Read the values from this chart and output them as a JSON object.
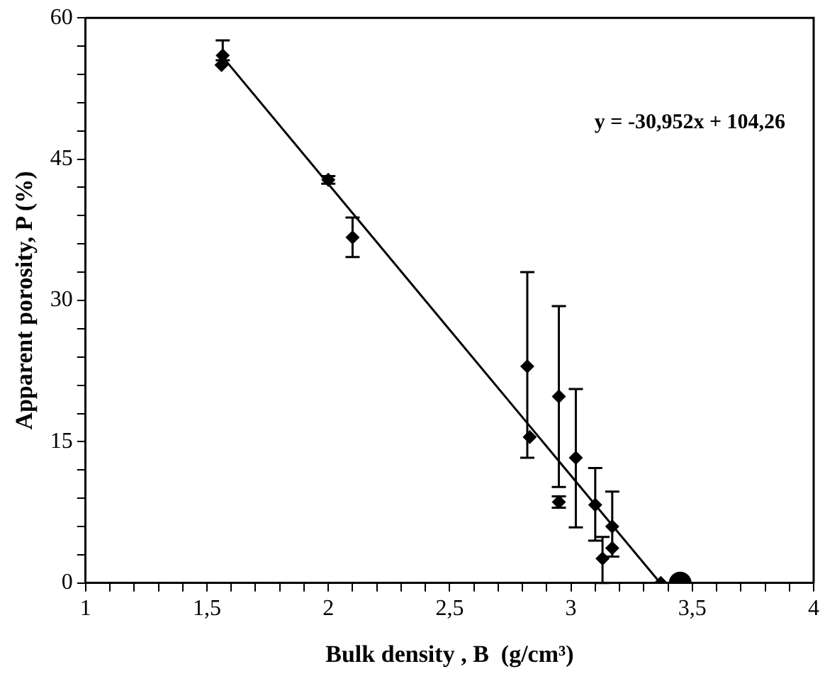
{
  "chart_data": {
    "type": "scatter",
    "xlabel": "Bulk density , B  (g/cm³)",
    "ylabel": "Apparent porosity, P (%)",
    "xlim": [
      1,
      4
    ],
    "ylim": [
      0,
      60
    ],
    "xticks": [
      1,
      {
        "value": 1.1,
        "label": null
      },
      {
        "value": 1.2,
        "label": null
      },
      {
        "value": 1.3,
        "label": null
      },
      {
        "value": 1.4,
        "label": null
      },
      {
        "value": 1.5,
        "label": "1,5"
      },
      {
        "value": 1.6,
        "label": null
      },
      {
        "value": 1.7,
        "label": null
      },
      {
        "value": 1.8,
        "label": null
      },
      {
        "value": 1.9,
        "label": null
      },
      2,
      {
        "value": 2.1,
        "label": null
      },
      {
        "value": 2.2,
        "label": null
      },
      {
        "value": 2.3,
        "label": null
      },
      {
        "value": 2.4,
        "label": null
      },
      {
        "value": 2.5,
        "label": "2,5"
      },
      {
        "value": 2.6,
        "label": null
      },
      {
        "value": 2.7,
        "label": null
      },
      {
        "value": 2.8,
        "label": null
      },
      {
        "value": 2.9,
        "label": null
      },
      3,
      {
        "value": 3.1,
        "label": null
      },
      {
        "value": 3.2,
        "label": null
      },
      {
        "value": 3.3,
        "label": null
      },
      {
        "value": 3.4,
        "label": null
      },
      {
        "value": 3.5,
        "label": "3,5"
      },
      {
        "value": 3.6,
        "label": null
      },
      {
        "value": 3.7,
        "label": null
      },
      {
        "value": 3.8,
        "label": null
      },
      {
        "value": 3.9,
        "label": null
      },
      4
    ],
    "yticks": [
      0,
      {
        "value": 3,
        "label": null
      },
      {
        "value": 6,
        "label": null
      },
      {
        "value": 9,
        "label": null
      },
      {
        "value": 12,
        "label": null
      },
      15,
      {
        "value": 18,
        "label": null
      },
      {
        "value": 21,
        "label": null
      },
      {
        "value": 24,
        "label": null
      },
      {
        "value": 27,
        "label": null
      },
      30,
      {
        "value": 33,
        "label": null
      },
      {
        "value": 36,
        "label": null
      },
      {
        "value": 39,
        "label": null
      },
      {
        "value": 42,
        "label": null
      },
      45,
      {
        "value": 48,
        "label": null
      },
      {
        "value": 51,
        "label": null
      },
      {
        "value": 54,
        "label": null
      },
      {
        "value": 57,
        "label": null
      },
      60
    ],
    "grid": false,
    "legend": false,
    "marker": "diamond",
    "annotations": [
      "y = -30,952x + 104,26"
    ],
    "series": [
      {
        "color": "#000000",
        "x": [
          1.56,
          1.565,
          2.0,
          2.1,
          2.82,
          2.83,
          2.95,
          2.95,
          3.02,
          3.1,
          3.13,
          3.17,
          3.17,
          3.37
        ],
        "values": [
          55.0,
          56.0,
          42.8,
          36.7,
          23.0,
          15.5,
          19.8,
          8.6,
          13.3,
          8.3,
          2.6,
          6.0,
          3.7,
          0.0
        ],
        "errors": [
          null,
          [
            55.5,
            57.6
          ],
          [
            42.4,
            43.2
          ],
          [
            34.6,
            38.8
          ],
          [
            13.3,
            33.0
          ],
          null,
          [
            10.2,
            29.4
          ],
          [
            8.0,
            9.2
          ],
          [
            5.9,
            20.6
          ],
          [
            4.5,
            12.2
          ],
          [
            0,
            4.9
          ],
          [
            2.8,
            9.7
          ],
          null,
          null
        ]
      },
      {
        "color": "#000000",
        "marker": "circle",
        "x": [
          3.45
        ],
        "values": [
          0
        ]
      },
      {
        "type": "line",
        "color": "#000000",
        "marker": "none",
        "line_style": "solid",
        "x": [
          1.56,
          3.368
        ],
        "values": [
          56.0,
          0.0
        ]
      }
    ]
  }
}
